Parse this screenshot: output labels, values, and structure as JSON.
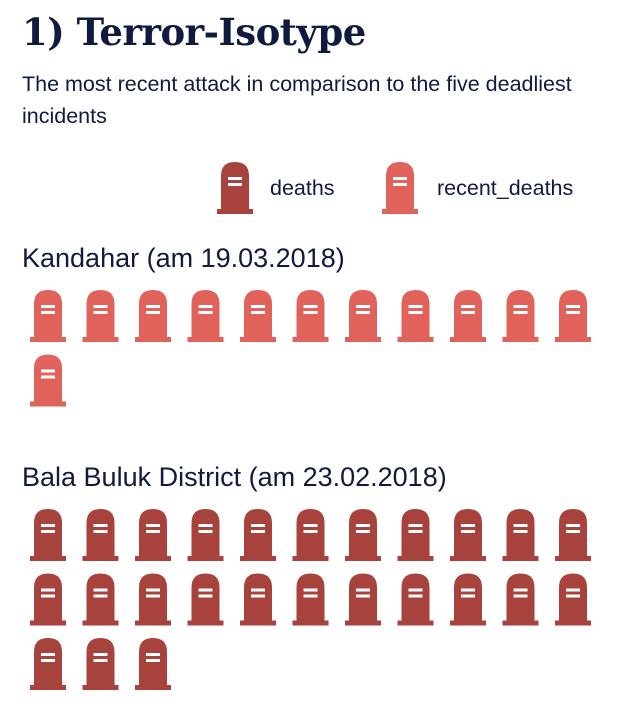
{
  "page": {
    "title": "1) Terror-Isotype",
    "subtitle": "The most recent attack in comparison to the five deadliest incidents"
  },
  "legend": {
    "items": [
      {
        "label": "deaths",
        "color": "#a8423c",
        "icon": "tombstone-icon"
      },
      {
        "label": "recent_deaths",
        "color": "#e0625a",
        "icon": "tombstone-icon"
      }
    ]
  },
  "chart_data": {
    "type": "isotype",
    "unit": "one tombstone per death",
    "series": [
      {
        "name": "deaths",
        "color": "#a8423c"
      },
      {
        "name": "recent_deaths",
        "color": "#e0625a"
      }
    ],
    "incidents": [
      {
        "label": "Kandahar (am 19.03.2018)",
        "series": "recent_deaths",
        "value": 12
      },
      {
        "label": "Bala Buluk District (am 23.02.2018)",
        "series": "deaths",
        "value": 25
      }
    ]
  }
}
